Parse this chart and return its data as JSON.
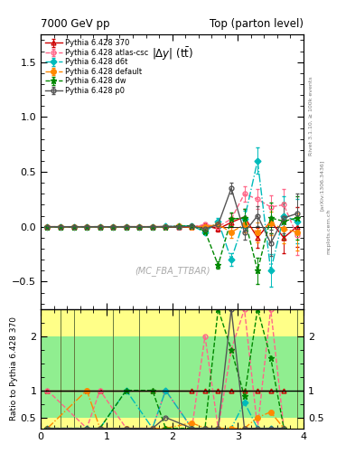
{
  "title_left": "7000 GeV pp",
  "title_right": "Top (parton level)",
  "ylabel_ratio": "Ratio to Pythia 6.428 370",
  "watermark": "(MC_FBA_TTBAR)",
  "rivet_label": "Rivet 3.1.10, ≥ 100k events",
  "arxiv_label": "[arXiv:1306.3436]",
  "mcplots_label": "mcplots.cern.ch",
  "xlim": [
    0,
    4
  ],
  "ylim_main": [
    -0.75,
    1.75
  ],
  "ylim_ratio": [
    0.3,
    2.5
  ],
  "yticks_main": [
    -0.5,
    0.0,
    0.5,
    1.0,
    1.5
  ],
  "yticks_ratio": [
    0.5,
    1.0,
    2.0
  ],
  "xticks": [
    0,
    1,
    2,
    3,
    4
  ],
  "bin_edges": [
    0.0,
    0.2,
    0.4,
    0.6,
    0.8,
    1.0,
    1.2,
    1.4,
    1.6,
    1.8,
    2.0,
    2.2,
    2.4,
    2.6,
    2.8,
    3.0,
    3.2,
    3.4,
    3.6,
    3.8,
    4.0
  ],
  "series": [
    {
      "label": "Pythia 6.428 370",
      "color": "#cc0000",
      "linestyle": "-",
      "marker": "^",
      "markersize": 3.5,
      "linewidth": 1.0,
      "markerfacecolor": "none",
      "values": [
        0.001,
        0.0,
        0.0,
        0.001,
        -0.001,
        0.0,
        0.001,
        0.0,
        0.001,
        0.002,
        0.0,
        -0.005,
        0.01,
        -0.02,
        0.04,
        0.09,
        -0.1,
        0.05,
        -0.1,
        0.0
      ],
      "errors": [
        0.005,
        0.005,
        0.004,
        0.004,
        0.004,
        0.004,
        0.005,
        0.005,
        0.006,
        0.007,
        0.009,
        0.012,
        0.018,
        0.025,
        0.04,
        0.07,
        0.09,
        0.11,
        0.14,
        0.18
      ]
    },
    {
      "label": "Pythia 6.428 atlas-csc",
      "color": "#ff6688",
      "linestyle": "--",
      "marker": "o",
      "markersize": 3.5,
      "linewidth": 1.0,
      "markerfacecolor": "none",
      "values": [
        0.001,
        0.0,
        0.001,
        0.0,
        -0.001,
        0.001,
        0.0,
        0.001,
        0.0,
        0.002,
        0.01,
        0.0,
        0.02,
        0.0,
        0.07,
        0.3,
        0.25,
        0.18,
        0.2,
        -0.08
      ],
      "errors": [
        0.004,
        0.004,
        0.004,
        0.004,
        0.004,
        0.004,
        0.004,
        0.005,
        0.006,
        0.008,
        0.01,
        0.014,
        0.02,
        0.03,
        0.05,
        0.07,
        0.09,
        0.11,
        0.14,
        0.18
      ]
    },
    {
      "label": "Pythia 6.428 d6t",
      "color": "#00bbbb",
      "linestyle": "-.",
      "marker": "D",
      "markersize": 3.5,
      "linewidth": 1.0,
      "markerfacecolor": "#00bbbb",
      "values": [
        0.0,
        0.001,
        0.0,
        -0.001,
        0.001,
        0.0,
        0.001,
        0.0,
        -0.001,
        0.002,
        0.005,
        0.01,
        -0.05,
        0.05,
        -0.3,
        0.07,
        0.6,
        -0.4,
        0.1,
        0.05
      ],
      "errors": [
        0.004,
        0.004,
        0.004,
        0.004,
        0.004,
        0.004,
        0.004,
        0.005,
        0.006,
        0.008,
        0.01,
        0.015,
        0.022,
        0.03,
        0.06,
        0.08,
        0.12,
        0.15,
        0.18,
        0.2
      ]
    },
    {
      "label": "Pythia 6.428 default",
      "color": "#ff8800",
      "linestyle": "-.",
      "marker": "o",
      "markersize": 4,
      "linewidth": 1.0,
      "markerfacecolor": "#ff8800",
      "values": [
        0.0,
        0.001,
        -0.001,
        0.001,
        0.0,
        -0.001,
        0.0,
        0.001,
        0.0,
        -0.001,
        0.002,
        -0.002,
        0.0,
        0.02,
        -0.05,
        0.02,
        -0.05,
        0.03,
        -0.02,
        -0.05
      ],
      "errors": [
        0.004,
        0.004,
        0.004,
        0.004,
        0.004,
        0.004,
        0.004,
        0.005,
        0.006,
        0.008,
        0.01,
        0.014,
        0.02,
        0.028,
        0.05,
        0.07,
        0.09,
        0.11,
        0.13,
        0.17
      ]
    },
    {
      "label": "Pythia 6.428 dw",
      "color": "#008800",
      "linestyle": "--",
      "marker": "*",
      "markersize": 5,
      "linewidth": 1.0,
      "markerfacecolor": "#008800",
      "values": [
        0.0,
        -0.001,
        0.001,
        0.0,
        0.001,
        -0.001,
        0.001,
        -0.001,
        0.001,
        -0.001,
        0.003,
        0.01,
        -0.04,
        -0.35,
        0.07,
        0.08,
        -0.4,
        0.08,
        0.05,
        0.08
      ],
      "errors": [
        0.004,
        0.004,
        0.004,
        0.004,
        0.004,
        0.004,
        0.004,
        0.005,
        0.006,
        0.008,
        0.01,
        0.015,
        0.022,
        0.035,
        0.06,
        0.08,
        0.12,
        0.14,
        0.17,
        0.2
      ]
    },
    {
      "label": "Pythia 6.428 p0",
      "color": "#555555",
      "linestyle": "-",
      "marker": "o",
      "markersize": 3.5,
      "linewidth": 1.0,
      "markerfacecolor": "none",
      "values": [
        0.0,
        0.001,
        -0.001,
        0.0,
        0.001,
        -0.001,
        0.0,
        0.001,
        -0.001,
        0.001,
        -0.002,
        0.005,
        -0.02,
        0.02,
        0.35,
        -0.05,
        0.1,
        -0.15,
        0.08,
        0.12
      ],
      "errors": [
        0.004,
        0.004,
        0.004,
        0.004,
        0.004,
        0.004,
        0.004,
        0.005,
        0.006,
        0.008,
        0.01,
        0.014,
        0.02,
        0.03,
        0.05,
        0.07,
        0.09,
        0.12,
        0.14,
        0.18
      ]
    }
  ],
  "bg_green": "#90ee90",
  "bg_yellow": "#ffff88",
  "ratio_green_lo": 0.5,
  "ratio_green_hi": 2.0,
  "ratio_yellow_lo": 0.3,
  "ratio_yellow_hi": 2.5
}
